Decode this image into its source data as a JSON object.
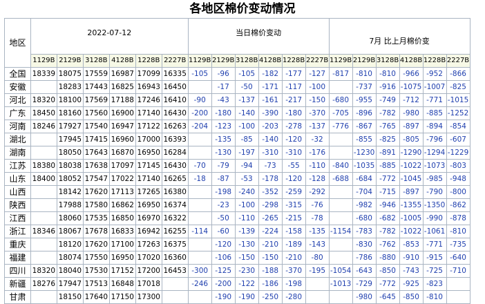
{
  "title": "各地区棉价变动情况",
  "header": {
    "region_label": "地区",
    "date_label": "2022-07-12",
    "daily_change_label": "当日棉价变动",
    "monthly_change_label": "7月 比上月棉价变",
    "grades": [
      "1129B",
      "2129B",
      "3128B",
      "4128B",
      "1228B",
      "2227B"
    ]
  },
  "colors": {
    "header_bg": "#f7f9e6",
    "grid_line": "#a9b4c2",
    "change_text": "#1f3fae"
  },
  "rows": [
    {
      "region": "全国",
      "prices": [
        "18339",
        "18075",
        "17559",
        "16987",
        "17099",
        "16335"
      ],
      "daily": [
        "-105",
        "-96",
        "-105",
        "-182",
        "-177",
        "-127"
      ],
      "monthly": [
        "-817",
        "-810",
        "-810",
        "-966",
        "-952",
        "-866"
      ]
    },
    {
      "region": "安徽",
      "prices": [
        "",
        "18283",
        "17443",
        "16825",
        "16943",
        "16450"
      ],
      "daily": [
        "",
        "-17",
        "-50",
        "-171",
        "-117",
        "-100"
      ],
      "monthly": [
        "",
        "-737",
        "-916",
        "-1075",
        "-1007",
        "-825"
      ]
    },
    {
      "region": "河北",
      "prices": [
        "18320",
        "18100",
        "17569",
        "17188",
        "17246",
        "16410"
      ],
      "daily": [
        "-90",
        "-43",
        "-137",
        "-161",
        "-217",
        "-150"
      ],
      "monthly": [
        "-680",
        "-955",
        "-749",
        "-712",
        "-771",
        "-1015"
      ]
    },
    {
      "region": "广东",
      "prices": [
        "18450",
        "18160",
        "17560",
        "16900",
        "17140",
        "16430"
      ],
      "daily": [
        "-200",
        "-180",
        "-140",
        "-390",
        "-180",
        "-370"
      ],
      "monthly": [
        "-705",
        "-896",
        "-782",
        "-980",
        "-885",
        "-1252"
      ]
    },
    {
      "region": "河南",
      "prices": [
        "18246",
        "17927",
        "17540",
        "16947",
        "17122",
        "16263"
      ],
      "daily": [
        "-204",
        "-123",
        "-100",
        "-203",
        "-278",
        "-137"
      ],
      "monthly": [
        "-776",
        "-867",
        "-765",
        "-897",
        "-894",
        "-854"
      ]
    },
    {
      "region": "湖北",
      "prices": [
        "",
        "17945",
        "17415",
        "16960",
        "17000",
        "16393"
      ],
      "daily": [
        "",
        "-135",
        "-85",
        "-140",
        "-120",
        "-32"
      ],
      "monthly": [
        "",
        "-855",
        "-825",
        "-805",
        "-796",
        "-607"
      ]
    },
    {
      "region": "湖南",
      "prices": [
        "",
        "18050",
        "17643",
        "16870",
        "16950",
        "16284"
      ],
      "daily": [
        "",
        "-130",
        "-197",
        "-310",
        "-310",
        "-176"
      ],
      "monthly": [
        "",
        "-1230",
        "-891",
        "-1290",
        "-1294",
        "-1229"
      ]
    },
    {
      "region": "江苏",
      "prices": [
        "18380",
        "18038",
        "17638",
        "17097",
        "17145",
        "16430"
      ],
      "daily": [
        "-70",
        "-79",
        "-94",
        "-73",
        "-55",
        "-110"
      ],
      "monthly": [
        "-840",
        "-1035",
        "-885",
        "-1022",
        "-1073",
        "-803"
      ]
    },
    {
      "region": "山东",
      "prices": [
        "18400",
        "18052",
        "17547",
        "17022",
        "17140",
        "16265"
      ],
      "daily": [
        "-18",
        "-87",
        "-53",
        "-178",
        "-120",
        "-128"
      ],
      "monthly": [
        "-688",
        "-684",
        "-772",
        "-1045",
        "-985",
        "-948"
      ]
    },
    {
      "region": "山西",
      "prices": [
        "",
        "18142",
        "17620",
        "17113",
        "17265",
        "16380"
      ],
      "daily": [
        "",
        "-198",
        "-240",
        "-352",
        "-259",
        "-292"
      ],
      "monthly": [
        "",
        "-704",
        "-715",
        "-897",
        "-790",
        "-800"
      ]
    },
    {
      "region": "陕西",
      "prices": [
        "",
        "17988",
        "17580",
        "16862",
        "16950",
        "16374"
      ],
      "daily": [
        "",
        "-23",
        "-100",
        "-298",
        "-315",
        "-76"
      ],
      "monthly": [
        "",
        "-982",
        "-946",
        "-1355",
        "-1350",
        "-862"
      ]
    },
    {
      "region": "江西",
      "prices": [
        "",
        "18060",
        "17535",
        "16850",
        "16970",
        "16322"
      ],
      "daily": [
        "",
        "-50",
        "-110",
        "-265",
        "-215",
        "-78"
      ],
      "monthly": [
        "",
        "-680",
        "-682",
        "-1005",
        "-990",
        "-878"
      ]
    },
    {
      "region": "浙江",
      "prices": [
        "18346",
        "18067",
        "17678",
        "16833",
        "16942",
        "16255"
      ],
      "daily": [
        "-114",
        "-60",
        "-139",
        "-224",
        "-158",
        "-135"
      ],
      "monthly": [
        "-1154",
        "-783",
        "-782",
        "-1022",
        "-1061",
        "-810"
      ]
    },
    {
      "region": "重庆",
      "prices": [
        "",
        "18120",
        "17620",
        "17100",
        "17263",
        "16375"
      ],
      "daily": [
        "",
        "-120",
        "-130",
        "-210",
        "-189",
        "-143"
      ],
      "monthly": [
        "",
        "-830",
        "-762",
        "-853",
        "-771",
        "-735"
      ]
    },
    {
      "region": "福建",
      "prices": [
        "",
        "18074",
        "17550",
        "16950",
        "17020",
        "16360"
      ],
      "daily": [
        "",
        "-106",
        "-150",
        "-150",
        "-210",
        "-80"
      ],
      "monthly": [
        "",
        "-786",
        "-880",
        "-910",
        "-915",
        "-640"
      ]
    },
    {
      "region": "四川",
      "prices": [
        "18320",
        "18040",
        "17530",
        "17152",
        "17200",
        "16453"
      ],
      "daily": [
        "-300",
        "-125",
        "-230",
        "-188",
        "-370",
        "-195"
      ],
      "monthly": [
        "-1054",
        "-643",
        "-850",
        "-743",
        "-725",
        "-710"
      ]
    },
    {
      "region": "新疆",
      "prices": [
        "18276",
        "17947",
        "17513",
        "16848",
        "17018",
        ""
      ],
      "daily": [
        "-246",
        "-200",
        "-122",
        "-186",
        "-198",
        ""
      ],
      "monthly": [
        "-1013",
        "-729",
        "-772",
        "-925",
        "-823",
        ""
      ]
    },
    {
      "region": "甘肃",
      "prices": [
        "",
        "18150",
        "17640",
        "17150",
        "17300",
        ""
      ],
      "daily": [
        "",
        "-190",
        "-190",
        "-250",
        "-280",
        ""
      ],
      "monthly": [
        "",
        "-980",
        "-645",
        "-850",
        "-810",
        ""
      ]
    }
  ]
}
